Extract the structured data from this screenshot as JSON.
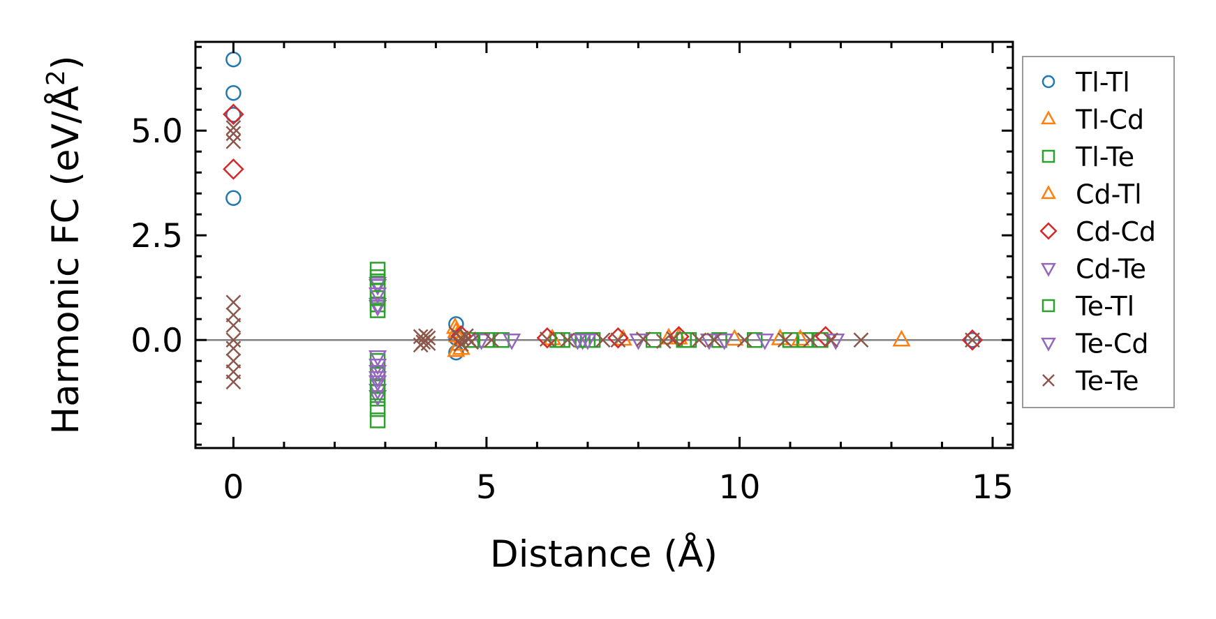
{
  "chart_data": {
    "type": "scatter",
    "title": "",
    "xlabel": "Distance (Å)",
    "ylabel": "Harmonic FC (eV/Å²)",
    "ylabel_parts": {
      "main": "Harmonic FC (eV/Å",
      "sup": "2",
      "end": ")"
    },
    "xlim": [
      -0.75,
      15.4
    ],
    "ylim": [
      -2.58,
      7.12
    ],
    "xticks": [
      0,
      5,
      10,
      15
    ],
    "xtick_labels": [
      "0",
      "5",
      "10",
      "15"
    ],
    "yticks": [
      0,
      2.5,
      5
    ],
    "ytick_labels": [
      "0.0",
      "2.5",
      "5.0"
    ],
    "x_minor_step": 1,
    "y_minor_step": 0.5,
    "zero_line": 0,
    "grid": false,
    "legend_position": "outside-right",
    "series": [
      {
        "name": "Tl-Tl",
        "marker": "circle",
        "color": "#1f77b4",
        "x": [
          0,
          0,
          0,
          0,
          4.4,
          4.4,
          4.4,
          14.6
        ],
        "y": [
          6.7,
          5.9,
          5.38,
          3.39,
          0.38,
          -0.3,
          0.05,
          0
        ]
      },
      {
        "name": "Tl-Cd",
        "marker": "triangle-up",
        "color": "#ff7f0e",
        "x": [
          4.38,
          4.4,
          4.42,
          4.45,
          7.7,
          8.8,
          10.8,
          13.2
        ],
        "y": [
          0.3,
          -0.25,
          0.1,
          -0.1,
          0.02,
          0.05,
          0.03,
          0
        ]
      },
      {
        "name": "Tl-Te",
        "marker": "square",
        "color": "#2ca02c",
        "x": [
          2.85,
          2.85,
          2.85,
          2.85,
          2.85,
          2.85,
          2.85,
          2.85,
          2.85,
          2.85,
          2.85,
          5.0,
          5.3,
          6.4,
          6.9,
          7.1,
          8.3,
          9.0,
          9.6,
          10.3,
          11.3,
          11.6
        ],
        "y": [
          1.68,
          1.4,
          1.18,
          0.85,
          0.71,
          -0.5,
          -0.8,
          -1.1,
          -1.4,
          -1.65,
          -1.92,
          0,
          0,
          0,
          0,
          0,
          0,
          0,
          0,
          0,
          0,
          0
        ]
      },
      {
        "name": "Cd-Tl",
        "marker": "triangle-up",
        "color": "#ff7f0e",
        "x": [
          4.4,
          4.5,
          6.3,
          8.6,
          9.9,
          11.2
        ],
        "y": [
          0.2,
          -0.2,
          0.03,
          0.05,
          0.02,
          0.02
        ]
      },
      {
        "name": "Cd-Cd",
        "marker": "diamond",
        "color": "#d62728",
        "x": [
          0,
          0,
          4.5,
          6.2,
          7.6,
          8.8,
          11.7,
          14.6
        ],
        "y": [
          5.39,
          4.08,
          0.1,
          0.05,
          0.05,
          0.08,
          0.08,
          0
        ]
      },
      {
        "name": "Cd-Te",
        "marker": "triangle-down",
        "color": "#9467bd",
        "x": [
          2.85,
          2.85,
          2.85,
          2.85,
          2.85,
          2.85,
          2.85,
          2.85,
          2.85,
          4.9,
          5.5,
          6.9,
          8.0,
          9.4,
          10.5
        ],
        "y": [
          1.35,
          1.3,
          0.85,
          0.8,
          -0.4,
          -0.6,
          -0.75,
          -1.2,
          -1.35,
          0,
          0,
          0,
          0,
          0,
          0
        ]
      },
      {
        "name": "Te-Tl",
        "marker": "square",
        "color": "#2ca02c",
        "x": [
          2.85,
          2.85,
          2.85,
          4.7,
          6.5,
          7.0,
          8.9,
          11.0
        ],
        "y": [
          1.5,
          1.0,
          -1.25,
          0,
          0,
          0,
          0,
          0
        ]
      },
      {
        "name": "Te-Cd",
        "marker": "triangle-down",
        "color": "#9467bd",
        "x": [
          2.85,
          2.85,
          2.85,
          6.8,
          7.0,
          9.7,
          11.9
        ],
        "y": [
          1.1,
          -0.9,
          -1.0,
          0,
          0,
          0,
          0
        ]
      },
      {
        "name": "Te-Te",
        "marker": "x",
        "color": "#8c564b",
        "x": [
          0,
          0,
          0,
          0,
          0,
          0,
          0,
          0,
          0,
          0,
          0,
          3.7,
          3.75,
          3.8,
          3.85,
          3.7,
          3.85,
          4.4,
          4.5,
          4.6,
          4.7,
          4.5,
          4.65,
          5.1,
          6.2,
          6.6,
          7.3,
          7.6,
          8.1,
          8.5,
          8.7,
          9.2,
          9.5,
          10.1,
          10.9,
          11.4,
          11.8,
          12.4,
          14.6
        ],
        "y": [
          5.07,
          4.93,
          4.74,
          0.9,
          0.6,
          0.35,
          0,
          -0.2,
          -0.5,
          -0.76,
          -1.0,
          0.08,
          -0.05,
          0.1,
          -0.08,
          -0.12,
          0.05,
          0.15,
          -0.1,
          0.1,
          -0.05,
          0.05,
          0.02,
          0,
          0.02,
          0,
          0,
          0,
          0.02,
          -0.03,
          0.03,
          0,
          0,
          0,
          0,
          0,
          0,
          0,
          0
        ]
      }
    ]
  }
}
